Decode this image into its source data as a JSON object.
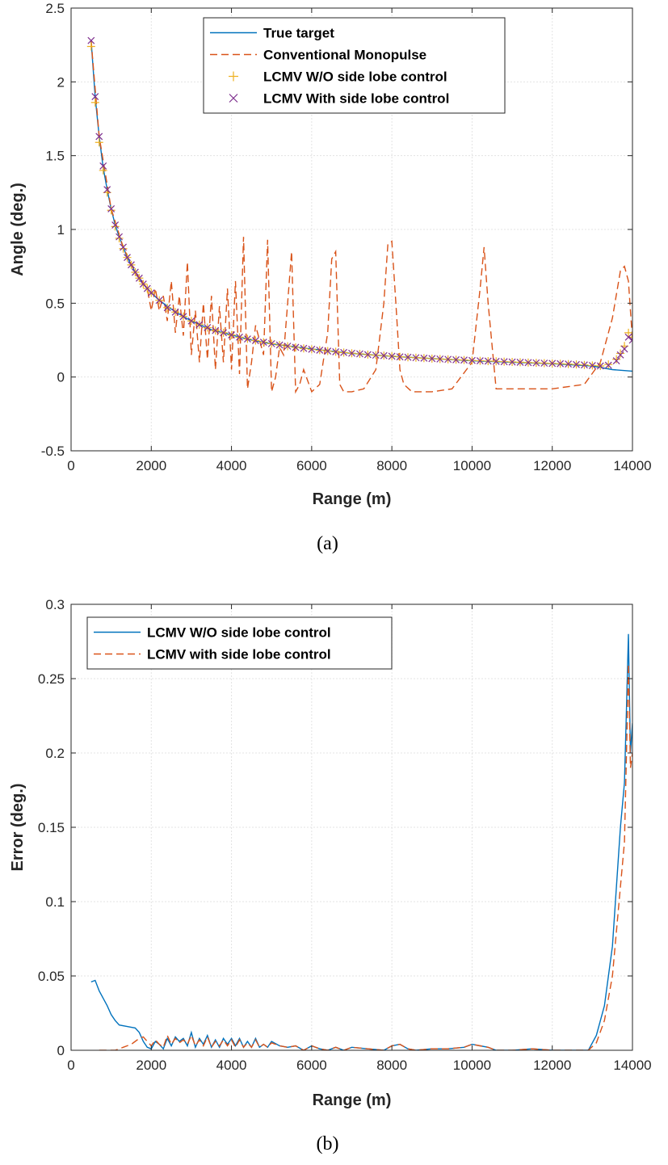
{
  "chart_data": [
    {
      "type": "line",
      "caption": "(a)",
      "xlabel": "Range (m)",
      "ylabel": "Angle (deg.)",
      "xlim": [
        0,
        14000
      ],
      "ylim": [
        -0.5,
        2.5
      ],
      "xticks": [
        0,
        2000,
        4000,
        6000,
        8000,
        10000,
        12000,
        14000
      ],
      "yticks": [
        -0.5,
        0,
        0.5,
        1,
        1.5,
        2,
        2.5
      ],
      "xtick_labels": [
        "0",
        "2000",
        "4000",
        "6000",
        "8000",
        "10000",
        "12000",
        "14000"
      ],
      "ytick_labels": [
        "-0.5",
        "0",
        "0.5",
        "1",
        "1.5",
        "2",
        "2.5"
      ],
      "grid": true,
      "legend_position": "top-center",
      "series": [
        {
          "name": "True target",
          "style": "line",
          "color": "#0072BD",
          "x": [
            500,
            600,
            700,
            800,
            900,
            1000,
            1100,
            1200,
            1300,
            1400,
            1500,
            1600,
            1800,
            2000,
            2200,
            2500,
            2800,
            3000,
            3500,
            4000,
            4500,
            5000,
            6000,
            7000,
            8000,
            9000,
            10000,
            11000,
            12000,
            13000,
            13500,
            14000
          ],
          "values": [
            2.28,
            1.9,
            1.63,
            1.42,
            1.27,
            1.14,
            1.03,
            0.95,
            0.88,
            0.81,
            0.76,
            0.71,
            0.63,
            0.57,
            0.52,
            0.46,
            0.41,
            0.38,
            0.32,
            0.285,
            0.25,
            0.225,
            0.19,
            0.16,
            0.14,
            0.125,
            0.11,
            0.1,
            0.09,
            0.075,
            0.05,
            0.04
          ]
        },
        {
          "name": "Conventional Monopulse",
          "style": "dashed",
          "color": "#D95319",
          "x": [
            500,
            700,
            1000,
            1300,
            1600,
            1900,
            2000,
            2100,
            2200,
            2300,
            2400,
            2500,
            2600,
            2700,
            2800,
            2900,
            3000,
            3100,
            3200,
            3300,
            3400,
            3500,
            3600,
            3700,
            3800,
            3900,
            4000,
            4100,
            4200,
            4300,
            4400,
            4500,
            4600,
            4700,
            4800,
            4900,
            5000,
            5100,
            5200,
            5300,
            5400,
            5500,
            5600,
            5700,
            5800,
            6000,
            6200,
            6400,
            6500,
            6600,
            6700,
            6800,
            7000,
            7300,
            7600,
            7800,
            7900,
            8000,
            8100,
            8200,
            8300,
            8500,
            9000,
            9500,
            10000,
            10200,
            10300,
            10400,
            10600,
            11000,
            12000,
            12800,
            13200,
            13500,
            13700,
            13800,
            13900,
            14000
          ],
          "values": [
            2.28,
            1.63,
            1.14,
            0.88,
            0.71,
            0.6,
            0.45,
            0.6,
            0.45,
            0.55,
            0.38,
            0.65,
            0.3,
            0.55,
            0.28,
            0.78,
            0.15,
            0.45,
            0.1,
            0.5,
            0.12,
            0.55,
            0.05,
            0.48,
            0.1,
            0.6,
            0.05,
            0.65,
            0.02,
            0.95,
            -0.08,
            0.1,
            0.35,
            0.25,
            0.15,
            0.93,
            -0.1,
            0.0,
            0.2,
            0.15,
            0.5,
            0.85,
            -0.1,
            -0.05,
            0.05,
            -0.1,
            -0.05,
            0.3,
            0.8,
            0.85,
            -0.05,
            -0.1,
            -0.1,
            -0.08,
            0.05,
            0.5,
            0.9,
            0.92,
            0.5,
            0.05,
            -0.05,
            -0.1,
            -0.1,
            -0.08,
            0.1,
            0.6,
            0.88,
            0.5,
            -0.08,
            -0.08,
            -0.08,
            -0.05,
            0.1,
            0.4,
            0.72,
            0.75,
            0.65,
            0.25
          ]
        },
        {
          "name": "LCMV W/O side lobe control",
          "style": "marker-plus",
          "color": "#EDB120",
          "x": [
            500,
            600,
            700,
            800,
            900,
            1000,
            1100,
            1200,
            1300,
            1400,
            1500,
            1600,
            1700,
            1800,
            1900,
            2000,
            2200,
            2400,
            2600,
            2800,
            3000,
            3200,
            3400,
            3600,
            3800,
            4000,
            4200,
            4400,
            4600,
            4800,
            5000,
            5200,
            5400,
            5600,
            5800,
            6000,
            6200,
            6400,
            6600,
            6800,
            7000,
            7200,
            7400,
            7600,
            7800,
            8000,
            8200,
            8400,
            8600,
            8800,
            9000,
            9200,
            9400,
            9600,
            9800,
            10000,
            10200,
            10400,
            10600,
            10800,
            11000,
            11200,
            11400,
            11600,
            11800,
            12000,
            12200,
            12400,
            12600,
            12800,
            13000,
            13200,
            13400,
            13600,
            13700,
            13800,
            13900,
            14000
          ],
          "values": [
            2.24,
            1.86,
            1.59,
            1.4,
            1.25,
            1.13,
            1.02,
            0.94,
            0.87,
            0.81,
            0.76,
            0.71,
            0.67,
            0.63,
            0.6,
            0.57,
            0.52,
            0.47,
            0.44,
            0.41,
            0.38,
            0.355,
            0.335,
            0.315,
            0.3,
            0.285,
            0.27,
            0.258,
            0.247,
            0.236,
            0.226,
            0.217,
            0.209,
            0.201,
            0.194,
            0.188,
            0.182,
            0.176,
            0.171,
            0.166,
            0.161,
            0.157,
            0.152,
            0.148,
            0.145,
            0.141,
            0.137,
            0.134,
            0.131,
            0.128,
            0.125,
            0.122,
            0.12,
            0.117,
            0.115,
            0.112,
            0.11,
            0.108,
            0.106,
            0.104,
            0.102,
            0.1,
            0.098,
            0.096,
            0.094,
            0.092,
            0.09,
            0.088,
            0.085,
            0.082,
            0.078,
            0.075,
            0.085,
            0.12,
            0.16,
            0.21,
            0.3,
            0.27
          ]
        },
        {
          "name": "LCMV With side lobe control",
          "style": "marker-x",
          "color": "#7E2F8E",
          "x": [
            500,
            600,
            700,
            800,
            900,
            1000,
            1100,
            1200,
            1300,
            1400,
            1500,
            1600,
            1700,
            1800,
            1900,
            2000,
            2200,
            2400,
            2600,
            2800,
            3000,
            3200,
            3400,
            3600,
            3800,
            4000,
            4200,
            4400,
            4600,
            4800,
            5000,
            5200,
            5400,
            5600,
            5800,
            6000,
            6200,
            6400,
            6600,
            6800,
            7000,
            7200,
            7400,
            7600,
            7800,
            8000,
            8200,
            8400,
            8600,
            8800,
            9000,
            9200,
            9400,
            9600,
            9800,
            10000,
            10200,
            10400,
            10600,
            10800,
            11000,
            11200,
            11400,
            11600,
            11800,
            12000,
            12200,
            12400,
            12600,
            12800,
            13000,
            13200,
            13400,
            13600,
            13700,
            13800,
            13900,
            14000
          ],
          "values": [
            2.28,
            1.9,
            1.63,
            1.43,
            1.27,
            1.14,
            1.03,
            0.95,
            0.88,
            0.81,
            0.76,
            0.71,
            0.67,
            0.63,
            0.6,
            0.57,
            0.52,
            0.47,
            0.44,
            0.41,
            0.38,
            0.355,
            0.335,
            0.315,
            0.3,
            0.285,
            0.27,
            0.258,
            0.247,
            0.236,
            0.226,
            0.217,
            0.209,
            0.201,
            0.194,
            0.188,
            0.182,
            0.176,
            0.171,
            0.166,
            0.161,
            0.157,
            0.152,
            0.148,
            0.145,
            0.141,
            0.137,
            0.134,
            0.131,
            0.128,
            0.125,
            0.122,
            0.12,
            0.117,
            0.115,
            0.112,
            0.11,
            0.108,
            0.106,
            0.104,
            0.102,
            0.1,
            0.098,
            0.096,
            0.094,
            0.092,
            0.09,
            0.088,
            0.085,
            0.082,
            0.078,
            0.075,
            0.08,
            0.11,
            0.15,
            0.19,
            0.27,
            0.25
          ]
        }
      ]
    },
    {
      "type": "line",
      "caption": "(b)",
      "xlabel": "Range (m)",
      "ylabel": "Error (deg.)",
      "xlim": [
        0,
        14000
      ],
      "ylim": [
        0,
        0.3
      ],
      "xticks": [
        0,
        2000,
        4000,
        6000,
        8000,
        10000,
        12000,
        14000
      ],
      "yticks": [
        0,
        0.05,
        0.1,
        0.15,
        0.2,
        0.25,
        0.3
      ],
      "xtick_labels": [
        "0",
        "2000",
        "4000",
        "6000",
        "8000",
        "10000",
        "12000",
        "14000"
      ],
      "ytick_labels": [
        "0",
        "0.05",
        "0.1",
        "0.15",
        "0.2",
        "0.25",
        "0.3"
      ],
      "grid": true,
      "legend_position": "top-left",
      "series": [
        {
          "name": "LCMV W/O side lobe control",
          "style": "line",
          "color": "#0072BD",
          "x": [
            500,
            600,
            700,
            800,
            900,
            1000,
            1100,
            1200,
            1400,
            1600,
            1700,
            1800,
            1900,
            2000,
            2100,
            2200,
            2300,
            2400,
            2500,
            2600,
            2700,
            2800,
            2900,
            3000,
            3100,
            3200,
            3300,
            3400,
            3500,
            3600,
            3700,
            3800,
            3900,
            4000,
            4100,
            4200,
            4300,
            4400,
            4500,
            4600,
            4700,
            4800,
            4900,
            5000,
            5200,
            5400,
            5600,
            5800,
            6000,
            6200,
            6400,
            6600,
            6800,
            7000,
            7400,
            7800,
            8000,
            8200,
            8400,
            8600,
            9000,
            9400,
            9800,
            10000,
            10200,
            10400,
            10600,
            11000,
            11500,
            12000,
            12500,
            12900,
            13100,
            13300,
            13500,
            13700,
            13800,
            13850,
            13900,
            13950,
            14000
          ],
          "values": [
            0.046,
            0.047,
            0.04,
            0.035,
            0.03,
            0.024,
            0.02,
            0.017,
            0.016,
            0.015,
            0.012,
            0.006,
            0.002,
            0.001,
            0.006,
            0.004,
            0.001,
            0.008,
            0.003,
            0.009,
            0.006,
            0.008,
            0.003,
            0.012,
            0.002,
            0.008,
            0.004,
            0.01,
            0.002,
            0.007,
            0.002,
            0.008,
            0.004,
            0.008,
            0.003,
            0.008,
            0.002,
            0.006,
            0.002,
            0.008,
            0.002,
            0.004,
            0.002,
            0.006,
            0.003,
            0.002,
            0.003,
            0.0,
            0.003,
            0.001,
            0.0,
            0.002,
            0.0,
            0.002,
            0.001,
            0.0,
            0.003,
            0.004,
            0.001,
            0.0,
            0.001,
            0.001,
            0.002,
            0.004,
            0.003,
            0.002,
            0.0,
            0.0,
            0.001,
            0.0,
            0.0,
            0.0,
            0.01,
            0.03,
            0.07,
            0.15,
            0.18,
            0.23,
            0.28,
            0.2,
            0.22
          ]
        },
        {
          "name": "LCMV with side lobe control",
          "style": "dashed",
          "color": "#D95319",
          "x": [
            700,
            900,
            1100,
            1300,
            1500,
            1600,
            1700,
            1800,
            1900,
            2000,
            2100,
            2200,
            2300,
            2400,
            2500,
            2600,
            2700,
            2800,
            2900,
            3000,
            3100,
            3200,
            3300,
            3400,
            3500,
            3600,
            3700,
            3800,
            3900,
            4000,
            4100,
            4200,
            4300,
            4400,
            4500,
            4600,
            4700,
            4800,
            4900,
            5000,
            5200,
            5400,
            5600,
            5800,
            6000,
            6200,
            6400,
            6600,
            6800,
            7000,
            7400,
            7800,
            8000,
            8200,
            8400,
            8600,
            9000,
            9400,
            9800,
            10000,
            10200,
            10400,
            10600,
            11000,
            11500,
            12000,
            12500,
            12900,
            13100,
            13300,
            13500,
            13700,
            13800,
            13850,
            13900,
            13950,
            14000
          ],
          "values": [
            0.0,
            0.0,
            0.0,
            0.002,
            0.004,
            0.006,
            0.008,
            0.009,
            0.006,
            0.003,
            0.007,
            0.004,
            0.002,
            0.01,
            0.004,
            0.008,
            0.005,
            0.007,
            0.004,
            0.01,
            0.003,
            0.007,
            0.003,
            0.009,
            0.002,
            0.006,
            0.003,
            0.007,
            0.003,
            0.007,
            0.002,
            0.007,
            0.002,
            0.005,
            0.002,
            0.007,
            0.002,
            0.004,
            0.002,
            0.005,
            0.003,
            0.002,
            0.003,
            0.0,
            0.003,
            0.001,
            0.0,
            0.002,
            0.0,
            0.002,
            0.001,
            0.0,
            0.003,
            0.004,
            0.001,
            0.0,
            0.001,
            0.001,
            0.002,
            0.004,
            0.003,
            0.002,
            0.0,
            0.0,
            0.001,
            0.0,
            0.0,
            0.0,
            0.005,
            0.02,
            0.05,
            0.11,
            0.14,
            0.2,
            0.26,
            0.19,
            0.2
          ]
        }
      ]
    }
  ]
}
